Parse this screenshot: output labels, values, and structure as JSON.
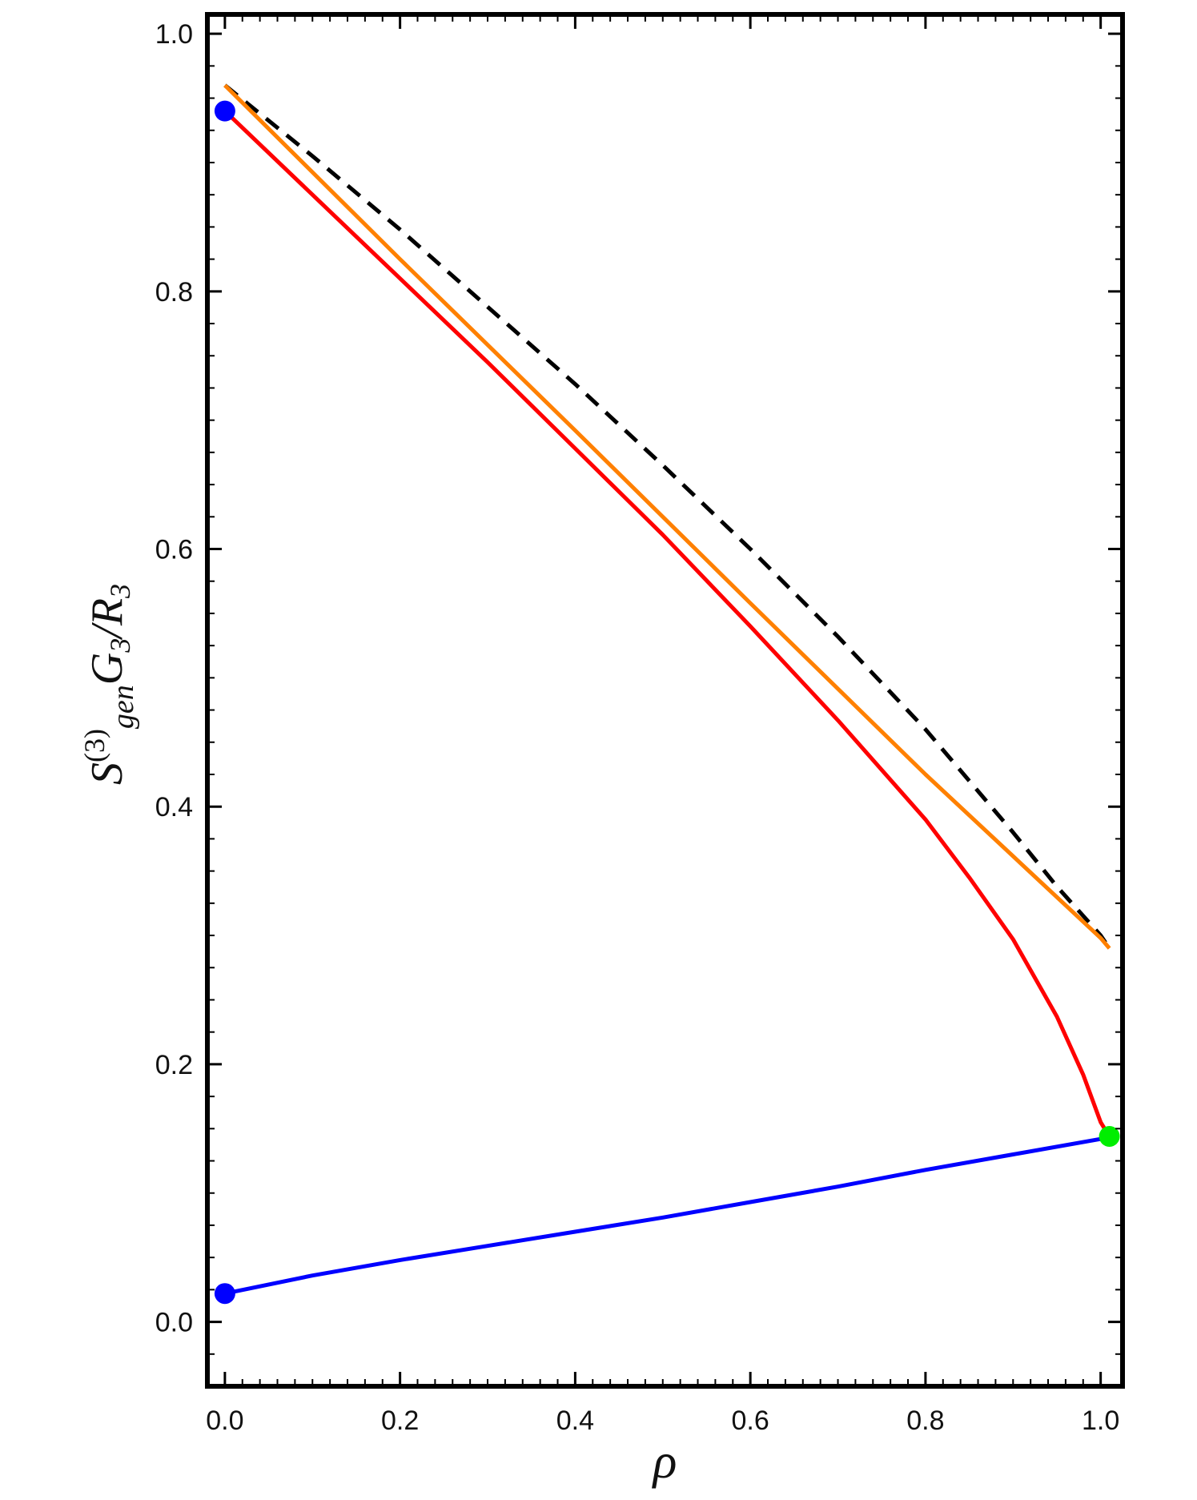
{
  "chart_data": {
    "type": "line",
    "title": "",
    "xlabel": "ρ",
    "ylabel": {
      "base": "S",
      "sup": "(3)",
      "sub": "gen",
      "main": "G",
      "main_sub": "3",
      "divider": "/R",
      "divider_sub": "3"
    },
    "xlim": [
      -0.02,
      1.025
    ],
    "ylim": [
      -0.05,
      1.015
    ],
    "grid": false,
    "legend": "none",
    "x_ticks": [
      {
        "value": 0.0,
        "label": "0.0"
      },
      {
        "value": 0.2,
        "label": "0.2"
      },
      {
        "value": 0.4,
        "label": "0.4"
      },
      {
        "value": 0.6,
        "label": "0.6"
      },
      {
        "value": 0.8,
        "label": "0.8"
      },
      {
        "value": 1.0,
        "label": "1.0"
      }
    ],
    "y_ticks": [
      {
        "value": 0.0,
        "label": "0.0"
      },
      {
        "value": 0.2,
        "label": "0.2"
      },
      {
        "value": 0.4,
        "label": "0.4"
      },
      {
        "value": 0.6,
        "label": "0.6"
      },
      {
        "value": 0.8,
        "label": "0.8"
      },
      {
        "value": 1.0,
        "label": "1.0"
      }
    ],
    "series": [
      {
        "color": "#000000",
        "style": "dashed",
        "x": [
          0.0,
          0.1,
          0.2,
          0.3,
          0.4,
          0.5,
          0.6,
          0.7,
          0.8,
          0.9,
          0.95,
          1.0,
          1.01
        ],
        "y": [
          0.96,
          0.905,
          0.848,
          0.788,
          0.728,
          0.665,
          0.6,
          0.532,
          0.46,
          0.38,
          0.338,
          0.3,
          0.29
        ]
      },
      {
        "color": "#ff8000",
        "style": "solid",
        "x": [
          0.0,
          0.2,
          0.4,
          0.6,
          0.8,
          1.0,
          1.01
        ],
        "y": [
          0.96,
          0.825,
          0.692,
          0.558,
          0.425,
          0.298,
          0.29
        ]
      },
      {
        "color": "#ff0000",
        "style": "solid",
        "x": [
          0.0,
          0.1,
          0.2,
          0.3,
          0.4,
          0.5,
          0.6,
          0.7,
          0.8,
          0.85,
          0.9,
          0.95,
          0.98,
          1.0,
          1.01
        ],
        "y": [
          0.94,
          0.875,
          0.81,
          0.745,
          0.678,
          0.611,
          0.54,
          0.467,
          0.39,
          0.345,
          0.297,
          0.237,
          0.192,
          0.155,
          0.144
        ]
      },
      {
        "color": "#0000ff",
        "style": "solid",
        "x": [
          0.0,
          0.1,
          0.2,
          0.3,
          0.4,
          0.5,
          0.6,
          0.7,
          0.8,
          0.9,
          1.0,
          1.01
        ],
        "y": [
          0.022,
          0.036,
          0.048,
          0.059,
          0.07,
          0.081,
          0.093,
          0.105,
          0.118,
          0.13,
          0.142,
          0.144
        ]
      }
    ],
    "points": [
      {
        "x": 0.0,
        "y": 0.94,
        "color": "#0000ff"
      },
      {
        "x": 0.0,
        "y": 0.022,
        "color": "#0000ff"
      },
      {
        "x": 1.01,
        "y": 0.144,
        "color": "#00ee00"
      }
    ]
  }
}
